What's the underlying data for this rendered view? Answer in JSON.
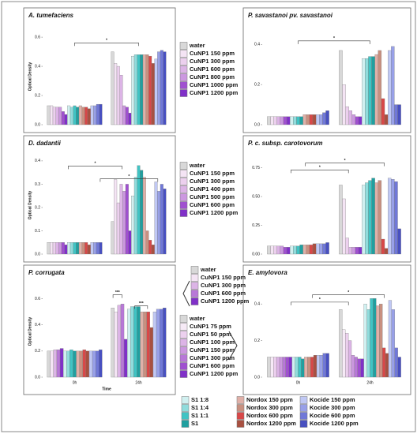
{
  "chart_data": [
    {
      "type": "bar",
      "title": "A. tumefaciens",
      "y_label": "Optical Density",
      "ylim": [
        0,
        0.66
      ],
      "yticks": [
        {
          "value": 0,
          "label": "0.0"
        },
        0.2,
        0.4,
        0.6
      ],
      "annotations": [
        "*"
      ],
      "series": [
        {
          "color": "#d8d8d8",
          "values": [
            0.13,
            0.5
          ]
        },
        {
          "color": "#f4e4f4",
          "values": [
            0.13,
            0.42
          ]
        },
        {
          "color": "#ecd0ee",
          "values": [
            0.12,
            0.4
          ]
        },
        {
          "color": "#dcb4e6",
          "values": [
            0.12,
            0.34
          ]
        },
        {
          "color": "#cc98e0",
          "values": [
            0.12,
            0.13
          ]
        },
        {
          "color": "#a050d0",
          "values": [
            0.09,
            0.12
          ]
        },
        {
          "color": "#8030c8",
          "values": [
            0.07,
            0.08
          ]
        },
        {
          "color": "#d0f0f0",
          "values": [
            0.13,
            0.47
          ]
        },
        {
          "color": "#90dcdc",
          "values": [
            0.12,
            0.48
          ]
        },
        {
          "color": "#40c4c4",
          "values": [
            0.13,
            0.48
          ]
        },
        {
          "color": "#20a0a0",
          "values": [
            0.12,
            0.48
          ]
        },
        {
          "color": "#e0b0a8",
          "values": [
            0.13,
            0.48
          ]
        },
        {
          "color": "#c89080",
          "values": [
            0.12,
            0.48
          ]
        },
        {
          "color": "#d84848",
          "values": [
            0.12,
            0.47
          ]
        },
        {
          "color": "#a85040",
          "values": [
            0.11,
            0.42
          ]
        },
        {
          "color": "#c0c8f4",
          "values": [
            0.13,
            0.45
          ]
        },
        {
          "color": "#98a0e8",
          "values": [
            0.13,
            0.5
          ]
        },
        {
          "color": "#7078d8",
          "values": [
            0.14,
            0.51
          ]
        },
        {
          "color": "#4850c0",
          "values": [
            0.14,
            0.5
          ]
        }
      ]
    },
    {
      "type": "bar",
      "title": "P. savastanoi pv. savastanoi",
      "ylim": [
        0,
        0.48
      ],
      "yticks": [
        {
          "value": 0,
          "label": "0.0"
        },
        0.2,
        0.4
      ],
      "annotations": [
        "*"
      ],
      "series": [
        {
          "color": "#d8d8d8",
          "values": [
            0.04,
            0.37
          ]
        },
        {
          "color": "#f4e4f4",
          "values": [
            0.04,
            0.2
          ]
        },
        {
          "color": "#ecd0ee",
          "values": [
            0.04,
            0.09
          ]
        },
        {
          "color": "#dcb4e6",
          "values": [
            0.04,
            0.07
          ]
        },
        {
          "color": "#cc98e0",
          "values": [
            0.04,
            0.05
          ]
        },
        {
          "color": "#a050d0",
          "values": [
            0.04,
            0.04
          ]
        },
        {
          "color": "#8030c8",
          "values": [
            0.04,
            0.04
          ]
        },
        {
          "color": "#d0f0f0",
          "values": [
            0.04,
            0.33
          ]
        },
        {
          "color": "#90dcdc",
          "values": [
            0.04,
            0.33
          ]
        },
        {
          "color": "#40c4c4",
          "values": [
            0.04,
            0.34
          ]
        },
        {
          "color": "#20a0a0",
          "values": [
            0.04,
            0.34
          ]
        },
        {
          "color": "#e0b0a8",
          "values": [
            0.05,
            0.35
          ]
        },
        {
          "color": "#c89080",
          "values": [
            0.05,
            0.37
          ]
        },
        {
          "color": "#d84848",
          "values": [
            0.05,
            0.13
          ]
        },
        {
          "color": "#a85040",
          "values": [
            0.05,
            0.05
          ]
        },
        {
          "color": "#c0c8f4",
          "values": [
            0.05,
            0.37
          ]
        },
        {
          "color": "#98a0e8",
          "values": [
            0.05,
            0.39
          ]
        },
        {
          "color": "#7078d8",
          "values": [
            0.06,
            0.1
          ]
        },
        {
          "color": "#4850c0",
          "values": [
            0.07,
            0.1
          ]
        }
      ]
    },
    {
      "type": "bar",
      "title": "D. dadantii",
      "y_label": "Optical Density",
      "ylim": [
        0,
        0.42
      ],
      "yticks": [
        {
          "value": 0,
          "label": "0.0"
        },
        0.1,
        0.2,
        0.3,
        0.4
      ],
      "annotations": [
        "*",
        "*"
      ],
      "series": [
        {
          "color": "#d8d8d8",
          "values": [
            0.05,
            0.14
          ]
        },
        {
          "color": "#f4e4f4",
          "values": [
            0.05,
            0.32
          ]
        },
        {
          "color": "#ecd0ee",
          "values": [
            0.05,
            0.22
          ]
        },
        {
          "color": "#dcb4e6",
          "values": [
            0.05,
            0.3
          ]
        },
        {
          "color": "#cc98e0",
          "values": [
            0.05,
            0.27
          ]
        },
        {
          "color": "#a050d0",
          "values": [
            0.05,
            0.3
          ]
        },
        {
          "color": "#8030c8",
          "values": [
            0.04,
            0.1
          ]
        },
        {
          "color": "#d0f0f0",
          "values": [
            0.05,
            0.25
          ]
        },
        {
          "color": "#90dcdc",
          "values": [
            0.05,
            0.33
          ]
        },
        {
          "color": "#40c4c4",
          "values": [
            0.05,
            0.38
          ]
        },
        {
          "color": "#20a0a0",
          "values": [
            0.05,
            0.36
          ]
        },
        {
          "color": "#e0b0a8",
          "values": [
            0.05,
            0.33
          ]
        },
        {
          "color": "#c89080",
          "values": [
            0.05,
            0.1
          ]
        },
        {
          "color": "#d84848",
          "values": [
            0.05,
            0.06
          ]
        },
        {
          "color": "#a85040",
          "values": [
            0.04,
            0.04
          ]
        },
        {
          "color": "#c0c8f4",
          "values": [
            0.05,
            0.31
          ]
        },
        {
          "color": "#98a0e8",
          "values": [
            0.05,
            0.27
          ]
        },
        {
          "color": "#7078d8",
          "values": [
            0.05,
            0.3
          ]
        },
        {
          "color": "#4850c0",
          "values": [
            0.05,
            0.28
          ]
        }
      ]
    },
    {
      "type": "bar",
      "title": "P. c. subsp. carotovorum",
      "ylim": [
        0,
        0.85
      ],
      "yticks": [
        {
          "value": 0,
          "label": "0.00"
        },
        0.25,
        {
          "value": 0.5,
          "label": "0.50"
        },
        0.75
      ],
      "annotations": [
        "*",
        "*"
      ],
      "series": [
        {
          "color": "#d8d8d8",
          "values": [
            0.07,
            0.6
          ]
        },
        {
          "color": "#f4e4f4",
          "values": [
            0.07,
            0.48
          ]
        },
        {
          "color": "#ecd0ee",
          "values": [
            0.07,
            0.14
          ]
        },
        {
          "color": "#dcb4e6",
          "values": [
            0.07,
            0.06
          ]
        },
        {
          "color": "#cc98e0",
          "values": [
            0.07,
            0.06
          ]
        },
        {
          "color": "#a050d0",
          "values": [
            0.06,
            0.06
          ]
        },
        {
          "color": "#8030c8",
          "values": [
            0.06,
            0.06
          ]
        },
        {
          "color": "#d0f0f0",
          "values": [
            0.07,
            0.6
          ]
        },
        {
          "color": "#90dcdc",
          "values": [
            0.07,
            0.62
          ]
        },
        {
          "color": "#40c4c4",
          "values": [
            0.07,
            0.64
          ]
        },
        {
          "color": "#20a0a0",
          "values": [
            0.08,
            0.66
          ]
        },
        {
          "color": "#e0b0a8",
          "values": [
            0.08,
            0.62
          ]
        },
        {
          "color": "#c89080",
          "values": [
            0.08,
            0.64
          ]
        },
        {
          "color": "#d84848",
          "values": [
            0.08,
            0.13
          ]
        },
        {
          "color": "#a85040",
          "values": [
            0.09,
            0.05
          ]
        },
        {
          "color": "#c0c8f4",
          "values": [
            0.09,
            0.66
          ]
        },
        {
          "color": "#98a0e8",
          "values": [
            0.09,
            0.65
          ]
        },
        {
          "color": "#7078d8",
          "values": [
            0.09,
            0.63
          ]
        },
        {
          "color": "#4850c0",
          "values": [
            0.1,
            0.22
          ]
        }
      ]
    },
    {
      "type": "bar",
      "title": "P. corrugata",
      "y_label": "Optical Density",
      "x_label": "Time",
      "categories": [
        "0h",
        "24h"
      ],
      "ylim": [
        0,
        0.7
      ],
      "yticks": [
        {
          "value": 0,
          "label": "0.0"
        },
        0.2,
        0.4,
        0.6
      ],
      "annotations": [
        "***",
        "***"
      ],
      "series": [
        {
          "color": "#d8d8d8",
          "values": [
            0.2,
            0.53
          ]
        },
        {
          "color": "#f4e4f4",
          "values": [
            0.2,
            0.5
          ]
        },
        {
          "color": "#dcb4e6",
          "values": [
            0.21,
            0.55
          ]
        },
        {
          "color": "#b878d8",
          "values": [
            0.21,
            0.56
          ]
        },
        {
          "color": "#8030c8",
          "values": [
            0.22,
            0.29
          ]
        },
        {
          "color": "#d0f0f0",
          "values": [
            0.2,
            0.52
          ]
        },
        {
          "color": "#90dcdc",
          "values": [
            0.2,
            0.54
          ]
        },
        {
          "color": "#40c4c4",
          "values": [
            0.21,
            0.54
          ]
        },
        {
          "color": "#20a0a0",
          "values": [
            0.2,
            0.54
          ]
        },
        {
          "color": "#e0b0a8",
          "values": [
            0.2,
            0.5
          ]
        },
        {
          "color": "#c89080",
          "values": [
            0.2,
            0.5
          ]
        },
        {
          "color": "#d84848",
          "values": [
            0.21,
            0.5
          ]
        },
        {
          "color": "#a85040",
          "values": [
            0.2,
            0.38
          ]
        },
        {
          "color": "#c0c8f4",
          "values": [
            0.2,
            0.5
          ]
        },
        {
          "color": "#98a0e8",
          "values": [
            0.2,
            0.52
          ]
        },
        {
          "color": "#7078d8",
          "values": [
            0.2,
            0.52
          ]
        },
        {
          "color": "#4850c0",
          "values": [
            0.21,
            0.53
          ]
        }
      ]
    },
    {
      "type": "bar",
      "title": "E. amylovora",
      "categories": [
        "0h",
        "24h"
      ],
      "ylim": [
        0,
        0.5
      ],
      "yticks": [
        {
          "value": 0,
          "label": "0.0"
        },
        0.2,
        0.4
      ],
      "annotations": [
        "*",
        "*"
      ],
      "series": [
        {
          "color": "#d8d8d8",
          "values": [
            0.11,
            0.37
          ]
        },
        {
          "color": "#f6eaf6",
          "values": [
            0.11,
            0.26
          ]
        },
        {
          "color": "#ecd0ee",
          "values": [
            0.11,
            0.24
          ]
        },
        {
          "color": "#dcb4e6",
          "values": [
            0.11,
            0.2
          ]
        },
        {
          "color": "#cc98e0",
          "values": [
            0.11,
            0.12
          ]
        },
        {
          "color": "#b878d8",
          "values": [
            0.11,
            0.11
          ]
        },
        {
          "color": "#a050d0",
          "values": [
            0.11,
            0.1
          ]
        },
        {
          "color": "#8030c8",
          "values": [
            0.11,
            0.1
          ]
        },
        {
          "color": "#d0f0f0",
          "values": [
            0.11,
            0.4
          ]
        },
        {
          "color": "#90dcdc",
          "values": [
            0.11,
            0.37
          ]
        },
        {
          "color": "#40c4c4",
          "values": [
            0.11,
            0.43
          ]
        },
        {
          "color": "#20a0a0",
          "values": [
            0.1,
            0.43
          ]
        },
        {
          "color": "#e0b0a8",
          "values": [
            0.11,
            0.39
          ]
        },
        {
          "color": "#c89080",
          "values": [
            0.11,
            0.4
          ]
        },
        {
          "color": "#d84848",
          "values": [
            0.11,
            0.16
          ]
        },
        {
          "color": "#a85040",
          "values": [
            0.12,
            0.13
          ]
        },
        {
          "color": "#c0c8f4",
          "values": [
            0.12,
            0.42
          ]
        },
        {
          "color": "#98a0e8",
          "values": [
            0.12,
            0.37
          ]
        },
        {
          "color": "#7078d8",
          "values": [
            0.13,
            0.16
          ]
        },
        {
          "color": "#4850c0",
          "values": [
            0.13,
            0.11
          ]
        }
      ]
    }
  ],
  "legends": [
    {
      "entries": [
        {
          "name": "water",
          "color": "#d8d8d8"
        },
        {
          "name": "CuNP1 150 ppm",
          "color": "#f4e4f4"
        },
        {
          "name": "CuNP1 300 ppm",
          "color": "#ecd0ee"
        },
        {
          "name": "CuNP1 600 ppm",
          "color": "#dcb4e6"
        },
        {
          "name": "CuNP1 800 ppm",
          "color": "#cc98e0"
        },
        {
          "name": "CuNP1 1000 ppm",
          "color": "#a050d0"
        },
        {
          "name": "CuNP1 1200 ppm",
          "color": "#8030c8"
        }
      ]
    },
    {
      "entries": [
        {
          "name": "water",
          "color": "#d8d8d8"
        },
        {
          "name": "CuNP1 150 ppm",
          "color": "#f4e4f4"
        },
        {
          "name": "CuNP1 300 ppm",
          "color": "#ecd0ee"
        },
        {
          "name": "CuNP1 400 ppm",
          "color": "#dcb4e6"
        },
        {
          "name": "CuNP1 500 ppm",
          "color": "#cc98e0"
        },
        {
          "name": "CuNP1 600 ppm",
          "color": "#a050d0"
        },
        {
          "name": "CuNP1 1200 ppm",
          "color": "#8030c8"
        }
      ]
    },
    {
      "entries": [
        {
          "name": "water",
          "color": "#d8d8d8"
        },
        {
          "name": "CuNP1 150 ppm",
          "color": "#f4e4f4"
        },
        {
          "name": "CuNP1 300 ppm",
          "color": "#dcb4e6"
        },
        {
          "name": "CuNP1 600 ppm",
          "color": "#b878d8"
        },
        {
          "name": "CuNP1 1200 ppm",
          "color": "#8030c8"
        }
      ]
    },
    {
      "entries": [
        {
          "name": "water",
          "color": "#d8d8d8"
        },
        {
          "name": "CuNP1 75 ppm",
          "color": "#f6eaf6"
        },
        {
          "name": "CuNP1 50 ppm",
          "color": "#ecd0ee"
        },
        {
          "name": "CuNP1 100 ppm",
          "color": "#dcb4e6"
        },
        {
          "name": "CuNP1 150 ppm",
          "color": "#cc98e0"
        },
        {
          "name": "CuNP1 300 ppm",
          "color": "#b878d8"
        },
        {
          "name": "CuNP1 600 ppm",
          "color": "#a050d0"
        },
        {
          "name": "CuNP1 1200 ppm",
          "color": "#8030c8"
        }
      ]
    },
    {
      "entries": [
        {
          "name": "S1 1:8",
          "color": "#d0f0f0"
        },
        {
          "name": "S1 1:4",
          "color": "#90dcdc"
        },
        {
          "name": "S1 1:1",
          "color": "#40c4c4"
        },
        {
          "name": "S1",
          "color": "#20a0a0"
        },
        {
          "name": "Nordox 150 ppm",
          "color": "#e0b0a8"
        },
        {
          "name": "Nordox 300 ppm",
          "color": "#c89080"
        },
        {
          "name": "Nordox 600 ppm",
          "color": "#d84848"
        },
        {
          "name": "Nordox 1200 ppm",
          "color": "#a85040"
        },
        {
          "name": "Kocide 150 ppm",
          "color": "#c0c8f4"
        },
        {
          "name": "Kocide 300 ppm",
          "color": "#98a0e8"
        },
        {
          "name": "Kocide 600 ppm",
          "color": "#7078d8"
        },
        {
          "name": "Kocide 1200 ppm",
          "color": "#4850c0"
        }
      ]
    }
  ]
}
